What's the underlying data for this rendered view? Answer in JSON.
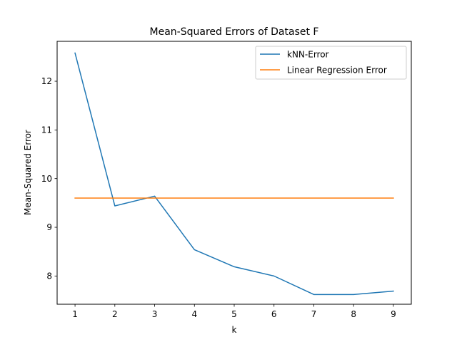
{
  "chart_data": {
    "type": "line",
    "title": "Mean-Squared Errors of Dataset F",
    "xlabel": "k",
    "ylabel": "Mean-Squared Error",
    "x": [
      1,
      2,
      3,
      4,
      5,
      6,
      7,
      8,
      9
    ],
    "xlim": [
      0.55,
      9.45
    ],
    "ylim": [
      7.42,
      12.82
    ],
    "xticks": [
      1,
      2,
      3,
      4,
      5,
      6,
      7,
      8,
      9
    ],
    "yticks": [
      8,
      9,
      10,
      11,
      12
    ],
    "grid": false,
    "legend_position": "top-right",
    "series": [
      {
        "name": "kNN-Error",
        "color": "#1f77b4",
        "values": [
          12.58,
          9.44,
          9.64,
          8.54,
          8.19,
          8.0,
          7.62,
          7.62,
          7.69
        ]
      },
      {
        "name": "Linear Regression Error",
        "color": "#ff7f0e",
        "values": [
          9.6,
          9.6,
          9.6,
          9.6,
          9.6,
          9.6,
          9.6,
          9.6,
          9.6
        ]
      }
    ]
  }
}
